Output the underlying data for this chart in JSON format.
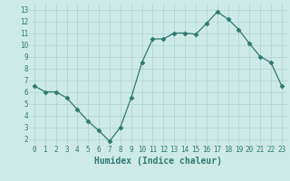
{
  "x": [
    0,
    1,
    2,
    3,
    4,
    5,
    6,
    7,
    8,
    9,
    10,
    11,
    12,
    13,
    14,
    15,
    16,
    17,
    18,
    19,
    20,
    21,
    22,
    23
  ],
  "y": [
    6.5,
    6.0,
    6.0,
    5.5,
    4.5,
    3.5,
    2.7,
    1.8,
    3.0,
    5.5,
    8.5,
    10.5,
    10.5,
    11.0,
    11.0,
    10.9,
    11.8,
    12.8,
    12.2,
    11.3,
    10.1,
    9.0,
    8.5,
    6.5
  ],
  "line_color": "#2d7a6e",
  "marker": "D",
  "marker_size": 2.5,
  "bg_color": "#ceeae7",
  "grid_color": "#aed4d0",
  "xlabel": "Humidex (Indice chaleur)",
  "xlabel_fontsize": 7,
  "xticks": [
    0,
    1,
    2,
    3,
    4,
    5,
    6,
    7,
    8,
    9,
    10,
    11,
    12,
    13,
    14,
    15,
    16,
    17,
    18,
    19,
    20,
    21,
    22,
    23
  ],
  "yticks": [
    2,
    3,
    4,
    5,
    6,
    7,
    8,
    9,
    10,
    11,
    12,
    13
  ],
  "ylim": [
    1.5,
    13.5
  ],
  "xlim": [
    -0.5,
    23.5
  ],
  "tick_fontsize": 5.5,
  "linewidth": 0.9
}
